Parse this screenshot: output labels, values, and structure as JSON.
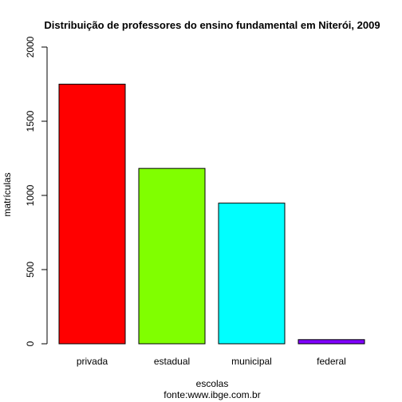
{
  "chart_data": {
    "type": "bar",
    "title": "Distribuição de professores do ensino fundamental em Niterói, 2009",
    "xlabel": "escolas",
    "ylabel": "matrículas",
    "caption": "fonte:www.ibge.com.br",
    "categories": [
      "privada",
      "estadual",
      "municipal",
      "federal"
    ],
    "values": [
      1750,
      1182,
      948,
      28
    ],
    "colors": [
      "#ff0000",
      "#80ff00",
      "#00ffff",
      "#8000ff"
    ],
    "ylim": [
      0,
      2000
    ],
    "yticks": [
      0,
      500,
      1000,
      1500,
      2000
    ],
    "grid": false,
    "legend": "none"
  }
}
